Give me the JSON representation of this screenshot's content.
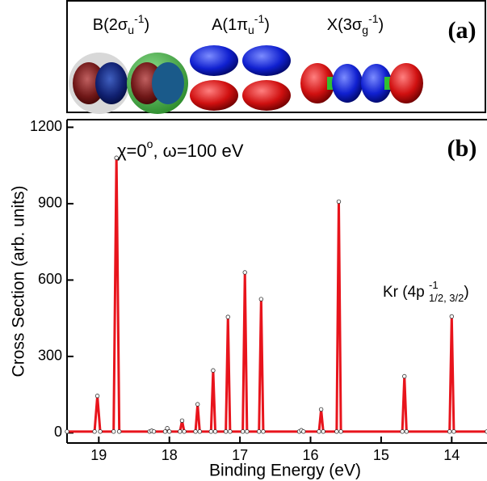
{
  "panel_a": {
    "label": "(a)",
    "orbitals": [
      [
        "B(2σ",
        "u",
        "-1",
        ")"
      ],
      [
        "A(1π",
        "u",
        "-1",
        ")"
      ],
      [
        "X(3σ",
        "g",
        "-1",
        ")"
      ]
    ]
  },
  "chart_data": {
    "type": "line",
    "panel_label": "(b)",
    "annotation": [
      "χ=0",
      "o",
      ", ω=100 eV"
    ],
    "peak_label": [
      "Kr (4p",
      "-1",
      "1/2, 3/2",
      ")"
    ],
    "x_label": "Binding Energy (eV)",
    "y_label": "Cross Section (arb. units)",
    "x": [
      19.45,
      19.06,
      19.02,
      18.98,
      18.79,
      18.75,
      18.71,
      18.28,
      18.25,
      18.22,
      18.06,
      18.03,
      18.0,
      17.85,
      17.82,
      17.79,
      17.63,
      17.6,
      17.57,
      17.41,
      17.38,
      17.35,
      17.2,
      17.17,
      17.14,
      16.96,
      16.93,
      16.9,
      16.73,
      16.7,
      16.67,
      16.16,
      16.13,
      16.1,
      15.88,
      15.85,
      15.82,
      15.63,
      15.6,
      15.57,
      14.7,
      14.67,
      14.64,
      14.03,
      14.0,
      13.97,
      13.5
    ],
    "series": [
      {
        "color": "#e8141c",
        "values": [
          5,
          5,
          145,
          5,
          5,
          1080,
          5,
          5,
          8,
          5,
          5,
          18,
          5,
          5,
          48,
          5,
          5,
          112,
          5,
          5,
          245,
          5,
          5,
          455,
          5,
          5,
          630,
          5,
          5,
          525,
          5,
          5,
          10,
          5,
          5,
          92,
          5,
          5,
          908,
          5,
          5,
          222,
          5,
          5,
          457,
          5,
          5
        ]
      }
    ],
    "xlim": [
      19.45,
      13.5
    ],
    "ylim": [
      -40,
      1230
    ],
    "xticks": [
      19,
      18,
      17,
      16,
      15,
      14
    ],
    "yticks": [
      0,
      300,
      600,
      900,
      1200
    ]
  }
}
